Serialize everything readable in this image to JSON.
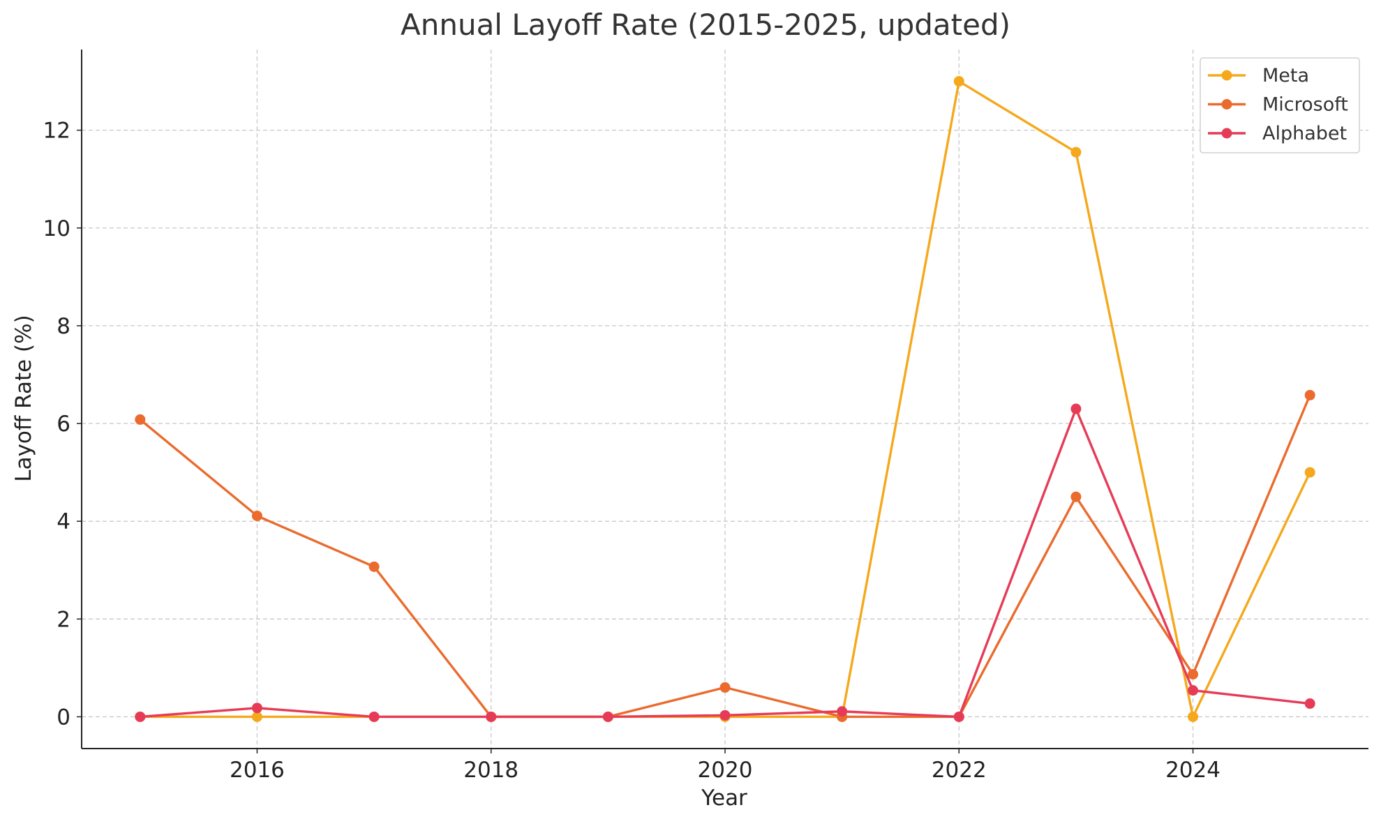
{
  "chart_data": {
    "type": "line",
    "title": "Annual Layoff Rate (2015-2025, updated)",
    "xlabel": "Year",
    "ylabel": "Layoff Rate (%)",
    "xlim": [
      2014.5,
      2025.5
    ],
    "ylim": [
      -0.65,
      13.65
    ],
    "x_ticks": [
      2016,
      2018,
      2020,
      2022,
      2024
    ],
    "y_ticks": [
      0,
      2,
      4,
      6,
      8,
      10,
      12
    ],
    "grid": true,
    "legend_position": "top-right",
    "x": [
      2015,
      2016,
      2017,
      2018,
      2019,
      2020,
      2021,
      2022,
      2023,
      2024,
      2025
    ],
    "series": [
      {
        "name": "Meta",
        "color": "#F5A81C",
        "values": [
          0,
          0,
          0,
          0,
          0,
          0,
          0,
          13.0,
          11.55,
          0,
          5.0
        ]
      },
      {
        "name": "Microsoft",
        "color": "#EA6B2D",
        "values": [
          6.08,
          4.11,
          3.07,
          0,
          0,
          0.6,
          0,
          0,
          4.5,
          0.87,
          6.58
        ]
      },
      {
        "name": "Alphabet",
        "color": "#E63B57",
        "values": [
          0,
          0.18,
          0,
          0,
          0,
          0.03,
          0.11,
          0,
          6.3,
          0.54,
          0.27
        ]
      }
    ]
  }
}
